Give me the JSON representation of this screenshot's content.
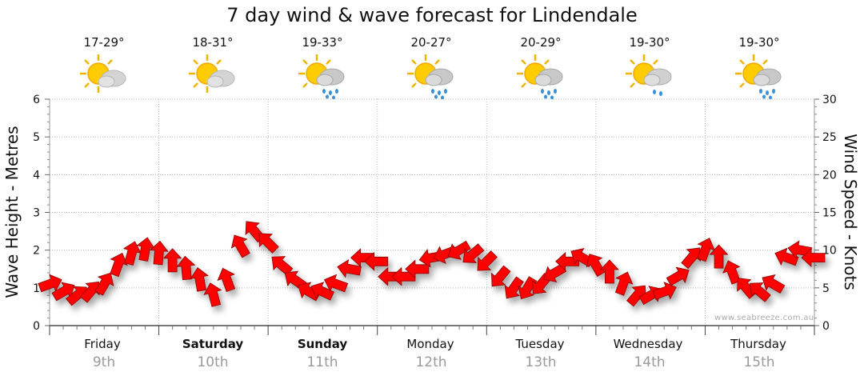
{
  "chart_data": {
    "type": "line",
    "title": "7 day wind & wave forecast for Lindendale",
    "ylabel": "Wave Height - Metres",
    "y2label": "Wind Speed - Knots",
    "ylim": [
      0,
      6
    ],
    "y2lim": [
      0,
      30
    ],
    "yticks": [
      "0",
      "1",
      "2",
      "3",
      "4",
      "5",
      "6"
    ],
    "y2ticks": [
      "0",
      "5",
      "10",
      "15",
      "20",
      "25",
      "30"
    ],
    "days": [
      {
        "day": "Friday",
        "date": "9th",
        "temp": "17-29°",
        "icon": "sun-cloud",
        "weekend": false
      },
      {
        "day": "Saturday",
        "date": "10th",
        "temp": "18-31°",
        "icon": "sun-cloud",
        "weekend": true
      },
      {
        "day": "Sunday",
        "date": "11th",
        "temp": "19-33°",
        "icon": "sun-cloud-rain",
        "weekend": true
      },
      {
        "day": "Monday",
        "date": "12th",
        "temp": "20-27°",
        "icon": "sun-cloud-rain",
        "weekend": false
      },
      {
        "day": "Tuesday",
        "date": "13th",
        "temp": "20-29°",
        "icon": "sun-cloud-rain",
        "weekend": false
      },
      {
        "day": "Wednesday",
        "date": "14th",
        "temp": "19-30°",
        "icon": "sun-cloud-light-rain",
        "weekend": false
      },
      {
        "day": "Thursday",
        "date": "15th",
        "temp": "19-30°",
        "icon": "sun-cloud-rain",
        "weekend": false
      }
    ],
    "series": [
      {
        "name": "Wind speed (knots)",
        "color": "#ff0000",
        "hours": [
          0,
          3,
          6,
          9,
          12,
          15,
          18,
          21,
          24,
          27,
          30,
          33,
          36,
          39,
          42,
          45,
          48,
          51,
          54,
          57,
          60,
          63,
          66,
          69,
          72,
          75,
          78,
          81,
          84,
          87,
          90,
          93,
          96,
          99,
          102,
          105,
          108,
          111,
          114,
          117,
          120,
          123,
          126,
          129,
          132,
          135,
          138,
          141,
          144,
          147,
          150,
          153,
          156,
          159,
          162,
          165,
          168
        ],
        "values": [
          5.5,
          4.5,
          4,
          4.5,
          5.5,
          8,
          9.5,
          10,
          9.5,
          8.5,
          7.5,
          6,
          4,
          6,
          10.5,
          12.5,
          11,
          8,
          6,
          4.5,
          4.5,
          5.5,
          7.5,
          9,
          8.5,
          6.5,
          6.5,
          7.5,
          9,
          9.5,
          10,
          9.5,
          8.5,
          6.5,
          5,
          5,
          5.5,
          7,
          8.5,
          9,
          8,
          7,
          5.5,
          4,
          4,
          4.5,
          6.5,
          9,
          10,
          9,
          7,
          5,
          4.5,
          5.5,
          9,
          10,
          9
        ],
        "directions_deg": [
          250,
          240,
          230,
          220,
          210,
          200,
          195,
          190,
          185,
          180,
          175,
          170,
          165,
          160,
          150,
          140,
          135,
          130,
          125,
          120,
          115,
          110,
          100,
          90,
          90,
          90,
          90,
          90,
          80,
          70,
          60,
          50,
          45,
          40,
          35,
          30,
          40,
          60,
          90,
          120,
          150,
          180,
          200,
          220,
          240,
          250,
          240,
          220,
          200,
          180,
          160,
          140,
          130,
          120,
          110,
          100,
          90
        ]
      }
    ],
    "credit": "www.seabreeze.com.au"
  }
}
